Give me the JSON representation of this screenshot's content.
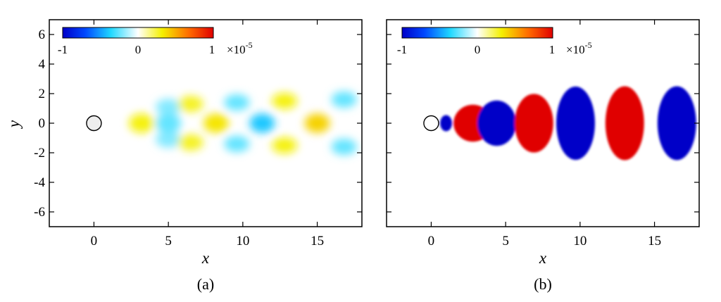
{
  "figure": {
    "panels": [
      {
        "caption": "(a)",
        "xlabel": "x",
        "ylabel": "y",
        "xticks": [
          "0",
          "5",
          "10",
          "15"
        ],
        "yticks": [
          "6",
          "4",
          "2",
          "0",
          "-2",
          "-4",
          "-6"
        ],
        "colorbar": {
          "min_label": "-1",
          "mid_label": "0",
          "max_label": "1",
          "exponent_base": "×10",
          "exponent_power": "-5"
        }
      },
      {
        "caption": "(b)",
        "xlabel": "x",
        "ylabel": "",
        "xticks": [
          "0",
          "5",
          "10",
          "15"
        ],
        "yticks": [],
        "colorbar": {
          "min_label": "-1",
          "mid_label": "0",
          "max_label": "1",
          "exponent_base": "×10",
          "exponent_power": "-5"
        }
      }
    ]
  },
  "chart_data": [
    {
      "type": "heatmap",
      "title": "",
      "xlabel": "x",
      "ylabel": "y",
      "xlim": [
        -3,
        18
      ],
      "ylim": [
        -7,
        7
      ],
      "colormap": "jet",
      "clim": [
        -1,
        1
      ],
      "clim_scale": "1e-5",
      "cylinder": {
        "center": [
          0,
          0
        ],
        "radius": 0.5
      },
      "wake_structures": [
        {
          "x": 3.2,
          "y": 0.0,
          "sign": 1,
          "magnitude": 0.3
        },
        {
          "x": 5.0,
          "y": 1.1,
          "sign": -1,
          "magnitude": 0.2
        },
        {
          "x": 5.0,
          "y": -1.1,
          "sign": -1,
          "magnitude": 0.2
        },
        {
          "x": 5.0,
          "y": 0.0,
          "sign": -1,
          "magnitude": 0.25
        },
        {
          "x": 6.5,
          "y": 1.3,
          "sign": 1,
          "magnitude": 0.28
        },
        {
          "x": 6.5,
          "y": -1.3,
          "sign": 1,
          "magnitude": 0.28
        },
        {
          "x": 8.2,
          "y": 0.0,
          "sign": 1,
          "magnitude": 0.35
        },
        {
          "x": 9.6,
          "y": 1.4,
          "sign": -1,
          "magnitude": 0.25
        },
        {
          "x": 9.6,
          "y": -1.4,
          "sign": -1,
          "magnitude": 0.25
        },
        {
          "x": 11.3,
          "y": 0.0,
          "sign": -1,
          "magnitude": 0.4
        },
        {
          "x": 12.8,
          "y": 1.5,
          "sign": 1,
          "magnitude": 0.3
        },
        {
          "x": 12.8,
          "y": -1.5,
          "sign": 1,
          "magnitude": 0.3
        },
        {
          "x": 15.0,
          "y": 0.0,
          "sign": 1,
          "magnitude": 0.4
        },
        {
          "x": 16.8,
          "y": 1.6,
          "sign": -1,
          "magnitude": 0.25
        },
        {
          "x": 16.8,
          "y": -1.6,
          "sign": -1,
          "magnitude": 0.25
        }
      ]
    },
    {
      "type": "heatmap",
      "title": "",
      "xlabel": "x",
      "ylabel": "",
      "xlim": [
        -3,
        18
      ],
      "ylim": [
        -7,
        7
      ],
      "colormap": "jet",
      "clim": [
        -1,
        1
      ],
      "clim_scale": "1e-5",
      "cylinder": {
        "center": [
          0,
          0
        ],
        "radius": 0.5
      },
      "wake_structures": [
        {
          "x": 1.0,
          "y": 0.0,
          "sign": -1,
          "magnitude": 1.0
        },
        {
          "x": 2.8,
          "y": 0.0,
          "sign": 1,
          "magnitude": 1.0
        },
        {
          "x": 4.4,
          "y": 0.0,
          "sign": -1,
          "magnitude": 1.0
        },
        {
          "x": 6.9,
          "y": 0.0,
          "sign": 1,
          "magnitude": 1.0
        },
        {
          "x": 9.7,
          "y": 0.0,
          "sign": -1,
          "magnitude": 1.0
        },
        {
          "x": 13.0,
          "y": 0.0,
          "sign": 1,
          "magnitude": 1.0
        },
        {
          "x": 16.5,
          "y": 0.0,
          "sign": -1,
          "magnitude": 1.0
        }
      ]
    }
  ]
}
